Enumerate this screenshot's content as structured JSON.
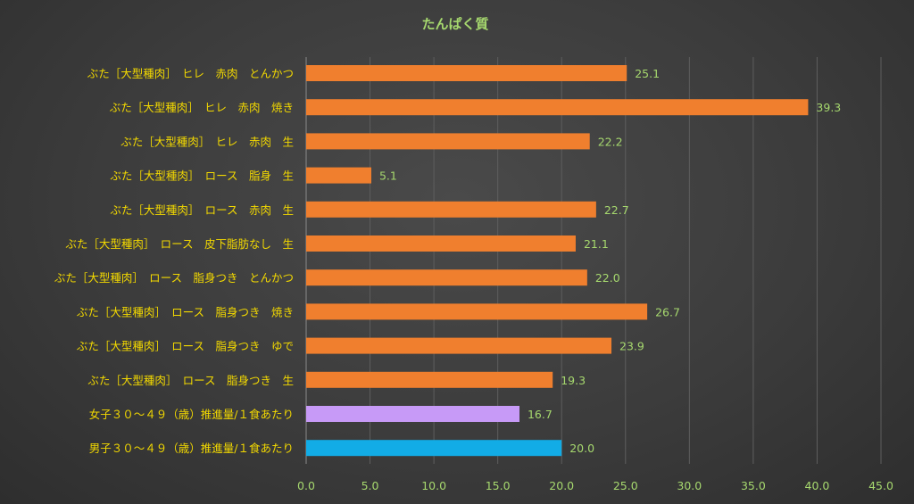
{
  "chart_data": {
    "type": "bar",
    "orientation": "horizontal",
    "title": "たんぱく質",
    "categories": [
      "ぶた［大型種肉］　ヒレ　赤肉　とんかつ",
      "ぶた［大型種肉］　ヒレ　赤肉　焼き",
      "ぶた［大型種肉］　ヒレ　赤肉　生",
      "ぶた［大型種肉］　ロース　脂身　生",
      "ぶた［大型種肉］　ロース　赤肉　生",
      "ぶた［大型種肉］　ロース　皮下脂肪なし　生",
      "ぶた［大型種肉］　ロース　脂身つき　とんかつ",
      "ぶた［大型種肉］　ロース　脂身つき　焼き",
      "ぶた［大型種肉］　ロース　脂身つき　ゆで",
      "ぶた［大型種肉］　ロース　脂身つき　生",
      "女子３０～４９（歳）推進量/１食あたり",
      "男子３０～４９（歳）推進量/１食あたり"
    ],
    "values": [
      25.1,
      39.3,
      22.2,
      5.1,
      22.7,
      21.1,
      22.0,
      26.7,
      23.9,
      19.3,
      16.7,
      20.0
    ],
    "value_labels": [
      "25.1",
      "39.3",
      "22.2",
      "5.1",
      "22.7",
      "21.1",
      "22.0",
      "26.7",
      "23.9",
      "19.3",
      "16.7",
      "20.0"
    ],
    "bar_colors": [
      "#f07f2e",
      "#f07f2e",
      "#f07f2e",
      "#f07f2e",
      "#f07f2e",
      "#f07f2e",
      "#f07f2e",
      "#f07f2e",
      "#f07f2e",
      "#f07f2e",
      "#c79af7",
      "#12ace6"
    ],
    "xlim": [
      0,
      45
    ],
    "x_ticks": [
      "0.0",
      "5.0",
      "10.0",
      "15.0",
      "20.0",
      "25.0",
      "30.0",
      "35.0",
      "40.0",
      "45.0"
    ],
    "xlabel": "",
    "ylabel": "",
    "grid": true,
    "legend": "none"
  }
}
